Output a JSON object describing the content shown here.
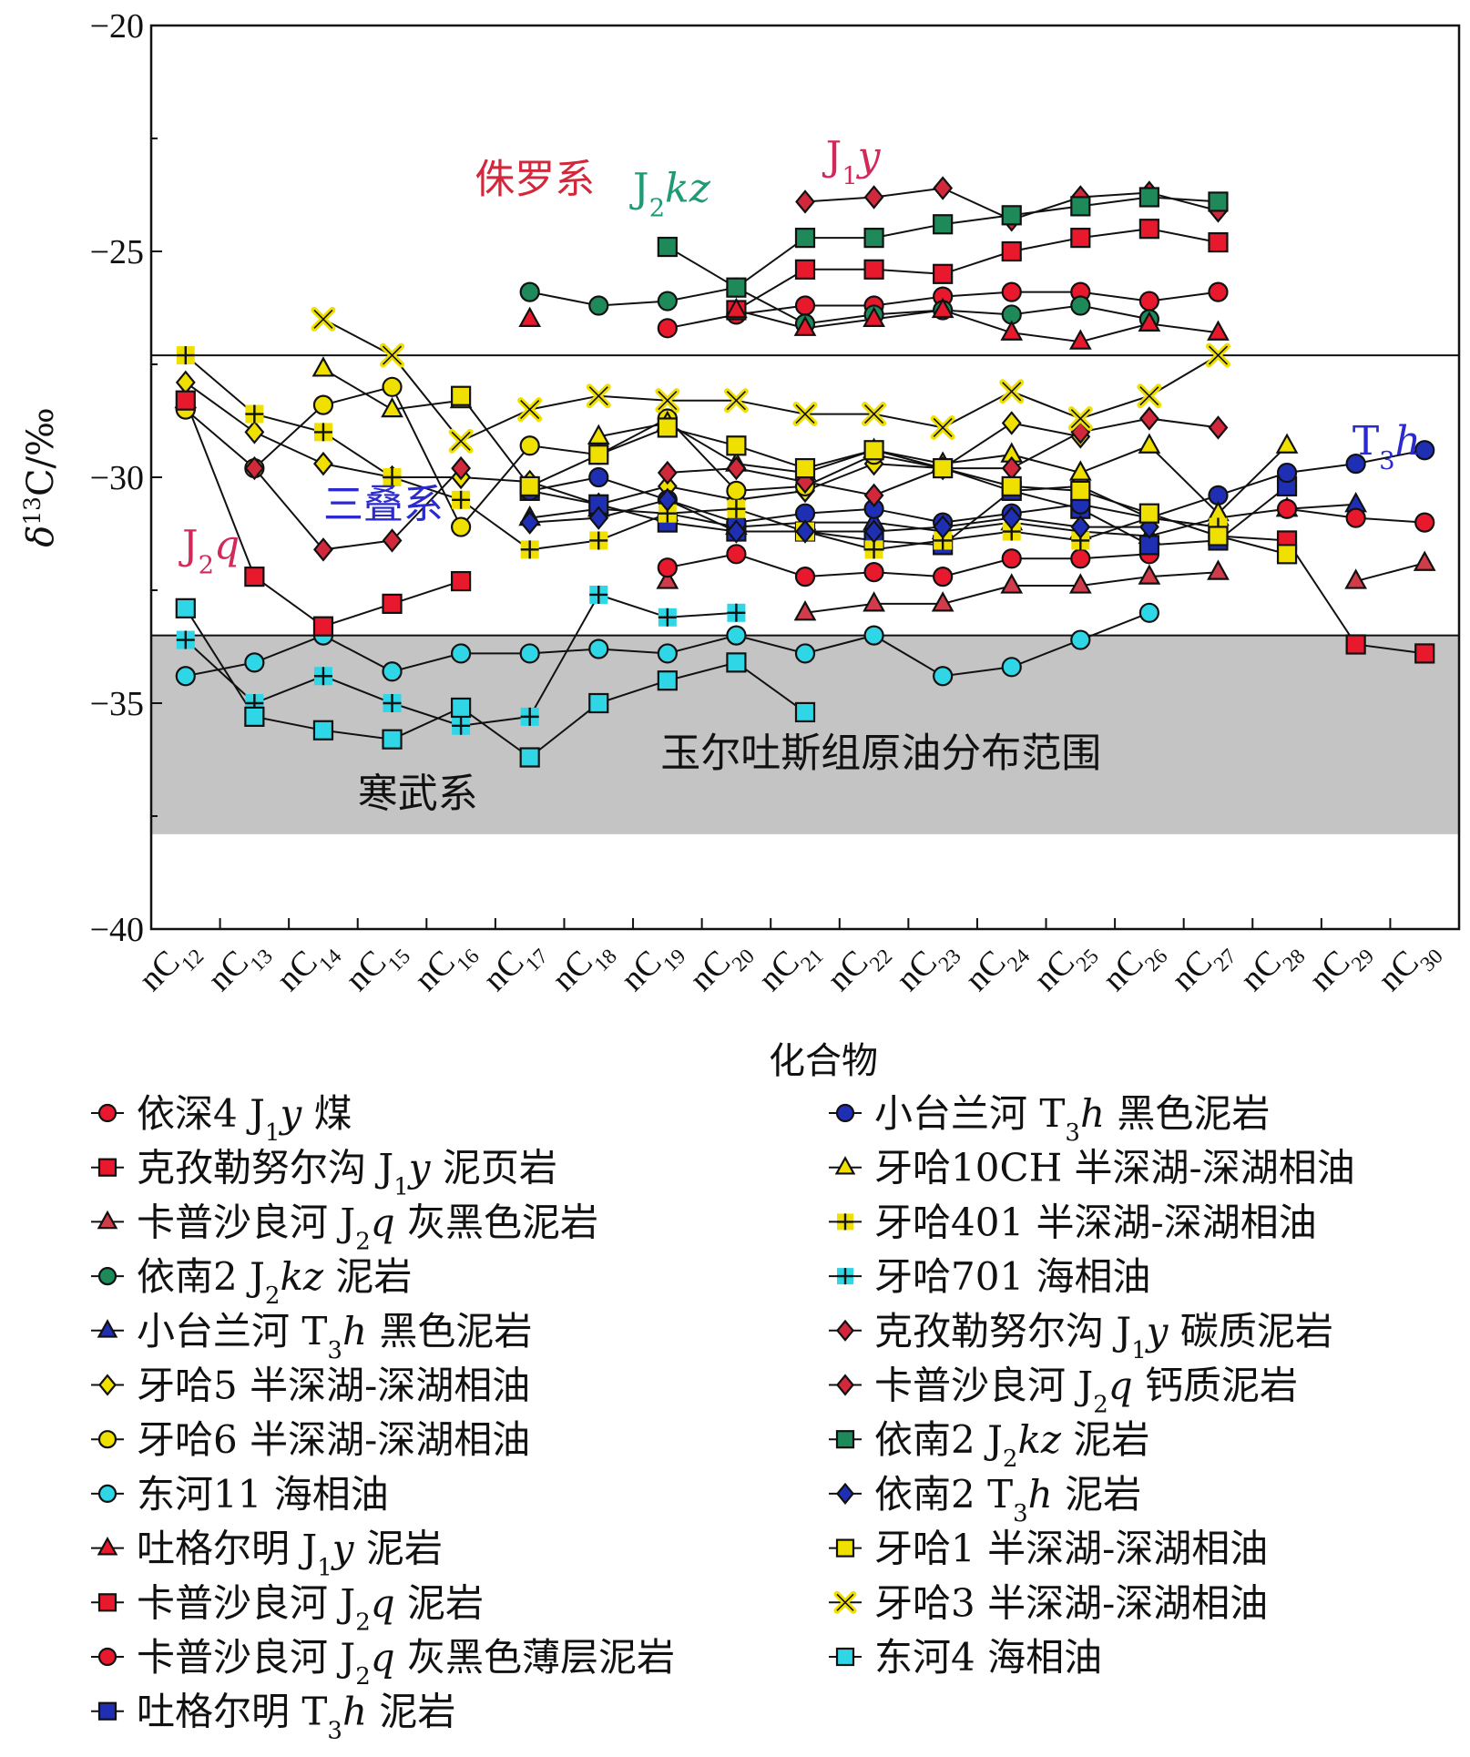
{
  "chart_data": {
    "type": "line",
    "title": "",
    "xlabel": "化合物",
    "ylabel": "δ13C/‰",
    "ylim": [
      -40,
      -20
    ],
    "yticks": [
      "−20",
      "−25",
      "−30",
      "−35",
      "−40"
    ],
    "categories": [
      {
        "base": "nC",
        "sub": "12"
      },
      {
        "base": "nC",
        "sub": "13"
      },
      {
        "base": "nC",
        "sub": "14"
      },
      {
        "base": "nC",
        "sub": "15"
      },
      {
        "base": "nC",
        "sub": "16"
      },
      {
        "base": "nC",
        "sub": "17"
      },
      {
        "base": "nC",
        "sub": "18"
      },
      {
        "base": "nC",
        "sub": "19"
      },
      {
        "base": "nC",
        "sub": "20"
      },
      {
        "base": "nC",
        "sub": "21"
      },
      {
        "base": "nC",
        "sub": "22"
      },
      {
        "base": "nC",
        "sub": "23"
      },
      {
        "base": "nC",
        "sub": "24"
      },
      {
        "base": "nC",
        "sub": "25"
      },
      {
        "base": "nC",
        "sub": "26"
      },
      {
        "base": "nC",
        "sub": "27"
      },
      {
        "base": "nC",
        "sub": "28"
      },
      {
        "base": "nC",
        "sub": "29"
      },
      {
        "base": "nC",
        "sub": "30"
      }
    ],
    "reference_lines": [
      -27.3,
      -33.5
    ],
    "shaded_band": {
      "from": -33.5,
      "to": -37.9,
      "label": "玉尔吐斯组原油分布范围"
    },
    "annotations": [
      {
        "parts": [
          {
            "t": "侏罗系"
          }
        ],
        "color": "#d2283c",
        "x": 4.2,
        "y": -23.7
      },
      {
        "parts": [
          {
            "t": "J"
          },
          {
            "t": "2",
            "sub": true
          },
          {
            "t": "kz",
            "italic": true
          }
        ],
        "color": "#1f9a76",
        "x": 6.5,
        "y": -23.9
      },
      {
        "parts": [
          {
            "t": "J"
          },
          {
            "t": "1",
            "sub": true
          },
          {
            "t": "y",
            "italic": true
          }
        ],
        "color": "#d2285a",
        "x": 9.3,
        "y": -23.2
      },
      {
        "parts": [
          {
            "t": "三叠系"
          }
        ],
        "color": "#2a2ad0",
        "x": 2.0,
        "y": -30.9
      },
      {
        "parts": [
          {
            "t": "J"
          },
          {
            "t": "2",
            "sub": true
          },
          {
            "t": "q",
            "italic": true
          }
        ],
        "color": "#d2285a",
        "x": -0.05,
        "y": -31.8
      },
      {
        "parts": [
          {
            "t": "T"
          },
          {
            "t": "3",
            "sub": true
          },
          {
            "t": "h",
            "italic": true
          }
        ],
        "color": "#2a2ad0",
        "x": 16.95,
        "y": -29.5
      },
      {
        "parts": [
          {
            "t": "寒武系"
          }
        ],
        "color": "#111111",
        "x": 2.5,
        "y": -37.3
      },
      {
        "parts": [
          {
            "t": "玉尔吐斯组原油分布范围"
          }
        ],
        "color": "#111111",
        "x": 6.9,
        "y": -36.4
      }
    ],
    "series": [
      {
        "name": "依深4 J1y 煤",
        "label": [
          {
            "t": "依深4 J"
          },
          {
            "t": "1",
            "sub": true
          },
          {
            "t": "y",
            "italic": true
          },
          {
            "t": " 煤"
          }
        ],
        "marker": "circle",
        "color": "#e8192c",
        "values": [
          null,
          null,
          null,
          null,
          null,
          null,
          null,
          -26.7,
          -26.4,
          -26.2,
          -26.2,
          -26.0,
          -25.9,
          -25.9,
          -26.1,
          -25.9,
          null,
          null,
          null
        ]
      },
      {
        "name": "克孜勒努尔沟 J1y 泥页岩",
        "label": [
          {
            "t": "克孜勒努尔沟 J"
          },
          {
            "t": "1",
            "sub": true
          },
          {
            "t": "y",
            "italic": true
          },
          {
            "t": " 泥页岩"
          }
        ],
        "marker": "square",
        "color": "#e8192c",
        "values": [
          null,
          null,
          null,
          null,
          null,
          null,
          null,
          null,
          -26.3,
          -25.4,
          -25.4,
          -25.5,
          -25.0,
          -24.7,
          -24.5,
          -24.8,
          null,
          null,
          null
        ]
      },
      {
        "name": "卡普沙良河 J2q 灰黑色泥岩",
        "label": [
          {
            "t": "卡普沙良河 J"
          },
          {
            "t": "2",
            "sub": true
          },
          {
            "t": "q",
            "italic": true
          },
          {
            "t": " 灰黑色泥岩"
          }
        ],
        "marker": "triangle",
        "color": "#d13c4a",
        "values": [
          -28.3,
          null,
          null,
          null,
          null,
          null,
          null,
          -32.3,
          null,
          -33.0,
          -32.8,
          -32.8,
          -32.4,
          -32.4,
          -32.2,
          -32.1,
          null,
          -32.3,
          -31.9
        ]
      },
      {
        "name": "依南2 J2kz 泥岩",
        "label": [
          {
            "t": "依南2 J"
          },
          {
            "t": "2",
            "sub": true
          },
          {
            "t": "kz",
            "italic": true
          },
          {
            "t": " 泥岩"
          }
        ],
        "marker": "circle",
        "color": "#1e8a5a",
        "values": [
          null,
          null,
          null,
          null,
          null,
          -25.9,
          -26.2,
          -26.1,
          -25.8,
          -26.6,
          -26.4,
          -26.3,
          -26.4,
          -26.2,
          -26.5,
          null,
          null,
          null,
          null
        ]
      },
      {
        "name": "小台兰河 T3h 黑色泥岩",
        "label": [
          {
            "t": "小台兰河 T"
          },
          {
            "t": "3",
            "sub": true
          },
          {
            "t": "h",
            "italic": true
          },
          {
            "t": " 黑色泥岩"
          }
        ],
        "marker": "triangle",
        "color": "#1f2fb4",
        "values": [
          null,
          null,
          null,
          null,
          null,
          -30.9,
          -30.7,
          -30.8,
          -31.1,
          -31.0,
          -31.0,
          -31.2,
          -31.0,
          -31.2,
          -31.3,
          -30.9,
          -30.7,
          -30.6,
          null
        ]
      },
      {
        "name": "牙哈5 半深湖-深湖相油",
        "label": [
          {
            "t": "牙哈5 半深湖-深湖相油"
          }
        ],
        "marker": "diamond",
        "color": "#f0e000",
        "values": [
          -27.9,
          -29.0,
          -29.7,
          -30.0,
          -30.0,
          -30.1,
          -30.6,
          -30.2,
          -30.5,
          -30.3,
          -29.7,
          -29.8,
          -28.8,
          -29.1,
          null,
          null,
          null,
          null,
          null
        ]
      },
      {
        "name": "牙哈6 半深湖-深湖相油",
        "label": [
          {
            "t": "牙哈6 半深湖-深湖相油"
          }
        ],
        "marker": "circle",
        "color": "#f0e000",
        "values": [
          -28.5,
          -29.8,
          -28.4,
          -28.0,
          -31.1,
          -29.3,
          -29.5,
          -28.7,
          -30.3,
          -30.2,
          -29.5,
          -29.8,
          -30.3,
          -30.2,
          -30.9,
          -31.1,
          null,
          null,
          null
        ]
      },
      {
        "name": "东河11 海相油",
        "label": [
          {
            "t": "东河11 海相油"
          }
        ],
        "marker": "circle",
        "color": "#2fd6e6",
        "values": [
          -34.4,
          -34.1,
          -33.5,
          -34.3,
          -33.9,
          -33.9,
          -33.8,
          -33.9,
          -33.5,
          -33.9,
          -33.5,
          -34.4,
          -34.2,
          -33.6,
          -33.0,
          null,
          null,
          null,
          null
        ]
      },
      {
        "name": "吐格尔明 J1y 泥岩",
        "label": [
          {
            "t": "吐格尔明 J"
          },
          {
            "t": "1",
            "sub": true
          },
          {
            "t": "y",
            "italic": true
          },
          {
            "t": " 泥岩"
          }
        ],
        "marker": "triangle",
        "color": "#e8192c",
        "values": [
          null,
          null,
          null,
          null,
          null,
          -26.5,
          null,
          null,
          -26.3,
          -26.7,
          -26.5,
          -26.3,
          -26.8,
          -27.0,
          -26.6,
          -26.8,
          null,
          null,
          null
        ]
      },
      {
        "name": "卡普沙良河 J2q 泥岩",
        "label": [
          {
            "t": "卡普沙良河 J"
          },
          {
            "t": "2",
            "sub": true
          },
          {
            "t": "q",
            "italic": true
          },
          {
            "t": " 泥岩"
          }
        ],
        "marker": "square",
        "color": "#e8192c",
        "values": [
          -28.3,
          -32.2,
          -33.3,
          -32.8,
          -32.3,
          null,
          null,
          null,
          null,
          null,
          null,
          null,
          null,
          null,
          null,
          -31.3,
          -31.4,
          -33.7,
          -33.9
        ]
      },
      {
        "name": "卡普沙良河 J2q 灰黑色薄层泥岩",
        "label": [
          {
            "t": "卡普沙良河 J"
          },
          {
            "t": "2",
            "sub": true
          },
          {
            "t": "q",
            "italic": true
          },
          {
            "t": " 灰黑色薄层泥岩"
          }
        ],
        "marker": "circle",
        "color": "#e8192c",
        "values": [
          null,
          null,
          null,
          null,
          null,
          null,
          null,
          -32.0,
          -31.7,
          -32.2,
          -32.1,
          -32.2,
          -31.8,
          -31.8,
          -31.7,
          null,
          -30.7,
          -30.9,
          -31.0
        ]
      },
      {
        "name": "吐格尔明 T3h 泥岩",
        "label": [
          {
            "t": "吐格尔明 T"
          },
          {
            "t": "3",
            "sub": true
          },
          {
            "t": "h",
            "italic": true
          },
          {
            "t": " 泥岩"
          }
        ],
        "marker": "square",
        "color": "#1f2fb4",
        "values": [
          null,
          null,
          null,
          null,
          null,
          -30.3,
          -30.6,
          -31.0,
          -31.2,
          -31.2,
          -31.4,
          -31.5,
          -30.3,
          -30.7,
          -31.5,
          -31.4,
          -30.2,
          null,
          null
        ]
      },
      {
        "name": "小台兰河 T3h 黑色泥岩",
        "label": [
          {
            "t": "小台兰河 T"
          },
          {
            "t": "3",
            "sub": true
          },
          {
            "t": "h",
            "italic": true
          },
          {
            "t": " 黑色泥岩"
          }
        ],
        "marker": "circle",
        "color": "#1f2fb4",
        "values": [
          null,
          null,
          null,
          null,
          null,
          -30.3,
          -30.0,
          -30.5,
          -31.0,
          -30.8,
          -30.7,
          -31.0,
          -30.8,
          -30.6,
          -30.9,
          -30.4,
          -29.9,
          -29.7,
          -29.4
        ]
      },
      {
        "name": "牙哈10CH 半深湖-深湖相油",
        "label": [
          {
            "t": "牙哈10CH 半深湖-深湖相油"
          }
        ],
        "marker": "triangle",
        "color": "#f0e000",
        "values": [
          null,
          null,
          -27.6,
          -28.5,
          -28.3,
          null,
          -29.1,
          -28.8,
          -29.7,
          -29.9,
          -29.4,
          -29.7,
          -29.5,
          -29.9,
          -29.3,
          -30.8,
          -29.3,
          null,
          null
        ]
      },
      {
        "name": "牙哈401 半深湖-深湖相油",
        "label": [
          {
            "t": "牙哈401 半深湖-深湖相油"
          }
        ],
        "marker": "plus",
        "color": "#f0e000",
        "values": [
          -27.3,
          -28.6,
          -29.0,
          -30.0,
          -30.5,
          -31.6,
          -31.4,
          -30.8,
          -30.7,
          -31.2,
          -31.6,
          -31.4,
          -31.2,
          -31.4,
          -30.9,
          -31.1,
          null,
          null,
          null
        ]
      },
      {
        "name": "牙哈701 海相油",
        "label": [
          {
            "t": "牙哈701 海相油"
          }
        ],
        "marker": "plus",
        "color": "#2fd6e6",
        "values": [
          -33.6,
          -35.0,
          -34.4,
          -35.0,
          -35.5,
          -35.3,
          -32.6,
          -33.1,
          -33.0,
          null,
          null,
          null,
          null,
          null,
          null,
          null,
          null,
          null,
          null
        ]
      },
      {
        "name": "克孜勒努尔沟 J1y 碳质泥岩",
        "label": [
          {
            "t": "克孜勒努尔沟 J"
          },
          {
            "t": "1",
            "sub": true
          },
          {
            "t": "y",
            "italic": true
          },
          {
            "t": " 碳质泥岩"
          }
        ],
        "marker": "diamond",
        "color": "#d2283c",
        "values": [
          null,
          null,
          null,
          null,
          null,
          null,
          null,
          null,
          null,
          -23.9,
          -23.8,
          -23.6,
          -24.3,
          -23.8,
          -23.7,
          -24.1,
          null,
          null,
          null
        ]
      },
      {
        "name": "卡普沙良河 J2q 钙质泥岩",
        "label": [
          {
            "t": "卡普沙良河 J"
          },
          {
            "t": "2",
            "sub": true
          },
          {
            "t": "q",
            "italic": true
          },
          {
            "t": " 钙质泥岩"
          }
        ],
        "marker": "diamond",
        "color": "#d2283c",
        "values": [
          null,
          -29.8,
          -31.6,
          -31.4,
          -29.8,
          null,
          null,
          -29.9,
          -29.8,
          -30.1,
          -30.4,
          -29.8,
          -29.8,
          -29.0,
          -28.7,
          -28.9,
          null,
          null,
          null
        ]
      },
      {
        "name": "依南2 J2kz 泥岩",
        "label": [
          {
            "t": "依南2 J"
          },
          {
            "t": "2",
            "sub": true
          },
          {
            "t": "kz",
            "italic": true
          },
          {
            "t": " 泥岩"
          }
        ],
        "marker": "square",
        "color": "#1e8a5a",
        "values": [
          null,
          null,
          null,
          null,
          null,
          null,
          null,
          -24.9,
          -25.8,
          -24.7,
          -24.7,
          -24.4,
          -24.2,
          -24.0,
          -23.8,
          -23.9,
          null,
          null,
          null
        ]
      },
      {
        "name": "依南2 T3h 泥岩",
        "label": [
          {
            "t": "依南2 T"
          },
          {
            "t": "3",
            "sub": true
          },
          {
            "t": "h",
            "italic": true
          },
          {
            "t": " 泥岩"
          }
        ],
        "marker": "diamond",
        "color": "#1f2fb4",
        "values": [
          null,
          null,
          null,
          null,
          null,
          -31.0,
          -30.9,
          -30.5,
          -31.2,
          -31.2,
          -31.2,
          -31.1,
          -30.9,
          -31.1,
          -31.1,
          null,
          null,
          null,
          null
        ]
      },
      {
        "name": "牙哈1 半深湖-深湖相油",
        "label": [
          {
            "t": "牙哈1 半深湖-深湖相油"
          }
        ],
        "marker": "square",
        "color": "#f0e000",
        "values": [
          null,
          null,
          null,
          null,
          -28.2,
          -30.2,
          -29.5,
          -28.9,
          -29.3,
          -29.8,
          -29.4,
          -29.8,
          -30.2,
          -30.3,
          -30.8,
          -31.3,
          -31.7,
          null,
          null
        ]
      },
      {
        "name": "牙哈3 半深湖-深湖相油",
        "label": [
          {
            "t": "牙哈3 半深湖-深湖相油"
          }
        ],
        "marker": "x",
        "color": "#f0e000",
        "values": [
          null,
          null,
          -26.5,
          -27.3,
          -29.2,
          -28.5,
          -28.2,
          -28.3,
          -28.3,
          -28.6,
          -28.6,
          -28.9,
          -28.1,
          -28.7,
          -28.2,
          -27.3,
          null,
          null,
          null
        ]
      },
      {
        "name": "东河4 海相油",
        "label": [
          {
            "t": "东河4 海相油"
          }
        ],
        "marker": "square",
        "color": "#2fd6e6",
        "values": [
          -32.9,
          -35.3,
          -35.6,
          -35.8,
          -35.1,
          -36.2,
          -35.0,
          -34.5,
          -34.1,
          -35.2,
          null,
          null,
          null,
          null,
          null,
          null,
          null,
          null,
          null
        ]
      }
    ]
  }
}
